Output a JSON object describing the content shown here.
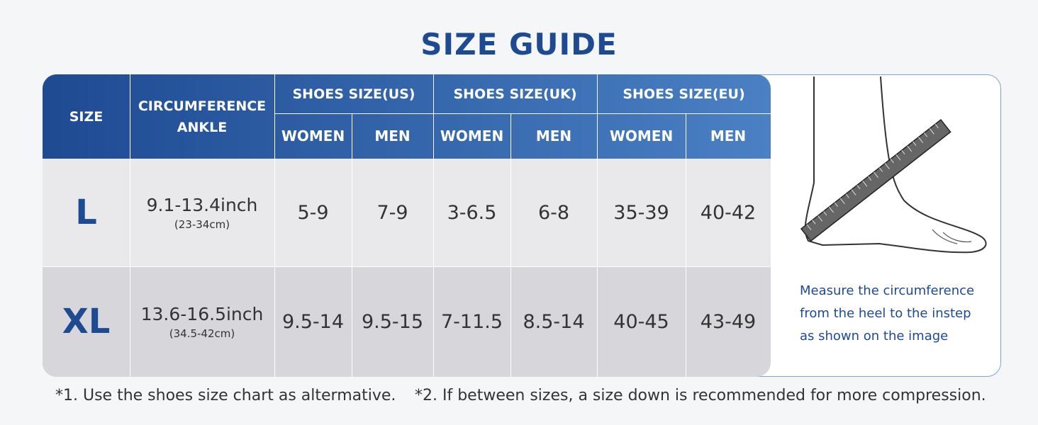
{
  "title": "SIZE GUIDE",
  "table": {
    "header": {
      "size": "SIZE",
      "circumference": "CIRCUMFERENCE ANKLE",
      "groups": [
        "SHOES SIZE(US)",
        "SHOES SIZE(UK)",
        "SHOES SIZE(EU)"
      ],
      "subheaders": [
        "WOMEN",
        "MEN",
        "WOMEN",
        "MEN",
        "WOMEN",
        "MEN"
      ]
    },
    "rows": [
      {
        "size": "L",
        "circumference": "9.1-13.4inch",
        "circumference_cm": "(23-34cm)",
        "shoe_sizes": [
          "5-9",
          "7-9",
          "3-6.5",
          "6-8",
          "35-39",
          "40-42"
        ]
      },
      {
        "size": "XL",
        "circumference": "13.6-16.5inch",
        "circumference_cm": "(34.5-42cm)",
        "shoe_sizes": [
          "9.5-14",
          "9.5-15",
          "7-11.5",
          "8.5-14",
          "40-45",
          "43-49"
        ]
      }
    ]
  },
  "illustration": {
    "caption": "Measure the circumference from the heel to the instep as shown on the image"
  },
  "footnotes": [
    "*1. Use the shoes size chart as altermative.",
    "*2. If between sizes, a size down is recommended for more compression."
  ]
}
